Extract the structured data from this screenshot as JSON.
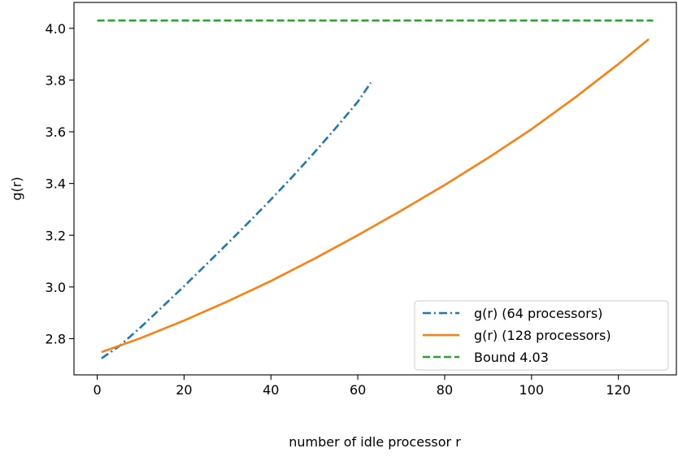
{
  "chart_data": {
    "type": "line",
    "title": "",
    "xlabel": "number of idle processor r",
    "ylabel": "g(r)",
    "xlim": [
      -5.35,
      133.35
    ],
    "ylim": [
      2.66,
      4.1
    ],
    "xticks": [
      0,
      20,
      40,
      60,
      80,
      100,
      120
    ],
    "yticks": [
      2.8,
      3.0,
      3.2,
      3.4,
      3.6,
      3.8,
      4.0
    ],
    "xtick_labels": [
      "0",
      "20",
      "40",
      "60",
      "80",
      "100",
      "120"
    ],
    "ytick_labels": [
      "2.8",
      "3.0",
      "3.2",
      "3.4",
      "3.6",
      "3.8",
      "4.0"
    ],
    "grid": false,
    "legend_position": "lower-right",
    "series": [
      {
        "name": "g(r) (64 processors)",
        "color": "#1f77b4",
        "linestyle": "dashdot",
        "x": [
          1,
          5,
          10,
          15,
          20,
          25,
          30,
          35,
          40,
          45,
          50,
          55,
          60,
          63
        ],
        "y": [
          2.724,
          2.77,
          2.844,
          2.923,
          3.003,
          3.085,
          3.168,
          3.252,
          3.338,
          3.427,
          3.52,
          3.616,
          3.716,
          3.79
        ]
      },
      {
        "name": "g(r) (128 processors)",
        "color": "#ff7f0e",
        "linestyle": "solid",
        "x": [
          1,
          10,
          20,
          30,
          40,
          50,
          60,
          70,
          80,
          90,
          100,
          110,
          120,
          127
        ],
        "y": [
          2.748,
          2.802,
          2.87,
          2.944,
          3.023,
          3.109,
          3.2,
          3.295,
          3.394,
          3.499,
          3.61,
          3.732,
          3.862,
          3.958
        ]
      },
      {
        "name": "Bound 4.03",
        "color": "#2ca02c",
        "linestyle": "dashed",
        "x": [
          0,
          128
        ],
        "y": [
          4.03,
          4.03
        ]
      }
    ]
  }
}
